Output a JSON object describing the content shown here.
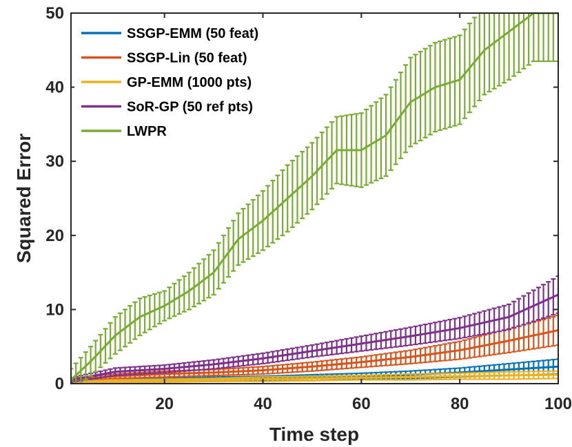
{
  "chart_data": {
    "type": "line",
    "title": "",
    "xlabel": "Time step",
    "ylabel": "Squared Error",
    "xlim": [
      1,
      100
    ],
    "ylim": [
      0,
      50
    ],
    "xticks": [
      20,
      40,
      60,
      80,
      100
    ],
    "yticks": [
      0,
      10,
      20,
      30,
      40,
      50
    ],
    "grid": false,
    "legend_placement": "top-left",
    "error_bars": true,
    "series": [
      {
        "name": "SSGP-EMM (50 feat)",
        "color": "#0072BD",
        "x": [
          1,
          10,
          20,
          30,
          40,
          50,
          60,
          70,
          80,
          90,
          100
        ],
        "y": [
          0.3,
          0.4,
          0.5,
          0.6,
          0.7,
          0.8,
          1.0,
          1.2,
          1.5,
          1.9,
          2.3
        ],
        "err": [
          0.2,
          0.2,
          0.2,
          0.3,
          0.3,
          0.4,
          0.4,
          0.5,
          0.6,
          0.8,
          1.0
        ]
      },
      {
        "name": "SSGP-Lin (50 feat)",
        "color": "#D95319",
        "x": [
          1,
          10,
          20,
          30,
          40,
          50,
          60,
          70,
          80,
          90,
          100
        ],
        "y": [
          0.5,
          1.0,
          1.3,
          1.5,
          1.8,
          2.3,
          2.9,
          3.6,
          4.5,
          5.8,
          7.2
        ],
        "err": [
          0.2,
          0.3,
          0.4,
          0.4,
          0.5,
          0.6,
          0.7,
          0.9,
          1.2,
          1.6,
          2.0
        ]
      },
      {
        "name": "GP-EMM (1000 pts)",
        "color": "#EDB120",
        "x": [
          1,
          10,
          20,
          30,
          40,
          50,
          60,
          70,
          80,
          90,
          100
        ],
        "y": [
          0.2,
          0.3,
          0.4,
          0.5,
          0.6,
          0.7,
          0.8,
          0.9,
          1.0,
          1.1,
          1.2
        ],
        "err": [
          0.1,
          0.2,
          0.2,
          0.2,
          0.3,
          0.3,
          0.3,
          0.4,
          0.4,
          0.5,
          0.5
        ]
      },
      {
        "name": "SoR-GP (50 ref pts)",
        "color": "#7E2F8E",
        "x": [
          1,
          10,
          20,
          30,
          40,
          50,
          60,
          70,
          80,
          90,
          100
        ],
        "y": [
          0.5,
          1.6,
          2.0,
          2.6,
          3.4,
          4.4,
          5.4,
          6.4,
          7.5,
          9.0,
          12.0
        ],
        "err": [
          0.3,
          0.5,
          0.5,
          0.6,
          0.7,
          0.8,
          1.0,
          1.2,
          1.4,
          1.7,
          2.5
        ]
      },
      {
        "name": "LWPR",
        "color": "#77AC30",
        "x": [
          1,
          5,
          10,
          15,
          20,
          25,
          30,
          35,
          40,
          45,
          50,
          55,
          60,
          65,
          70,
          75,
          80,
          85,
          90,
          95,
          100
        ],
        "y": [
          0.5,
          3.0,
          6.5,
          9.0,
          10.5,
          12.5,
          15.0,
          19.5,
          22.0,
          25.0,
          28.0,
          31.5,
          31.5,
          33.5,
          38.0,
          40.0,
          41.0,
          45.0,
          47.5,
          50.0,
          50.0
        ],
        "err": [
          1.5,
          2.0,
          2.5,
          2.5,
          2.0,
          2.5,
          3.0,
          3.5,
          4.0,
          4.5,
          4.5,
          4.5,
          5.0,
          5.5,
          6.0,
          6.0,
          6.0,
          6.0,
          6.5,
          6.5,
          6.5
        ]
      }
    ]
  }
}
